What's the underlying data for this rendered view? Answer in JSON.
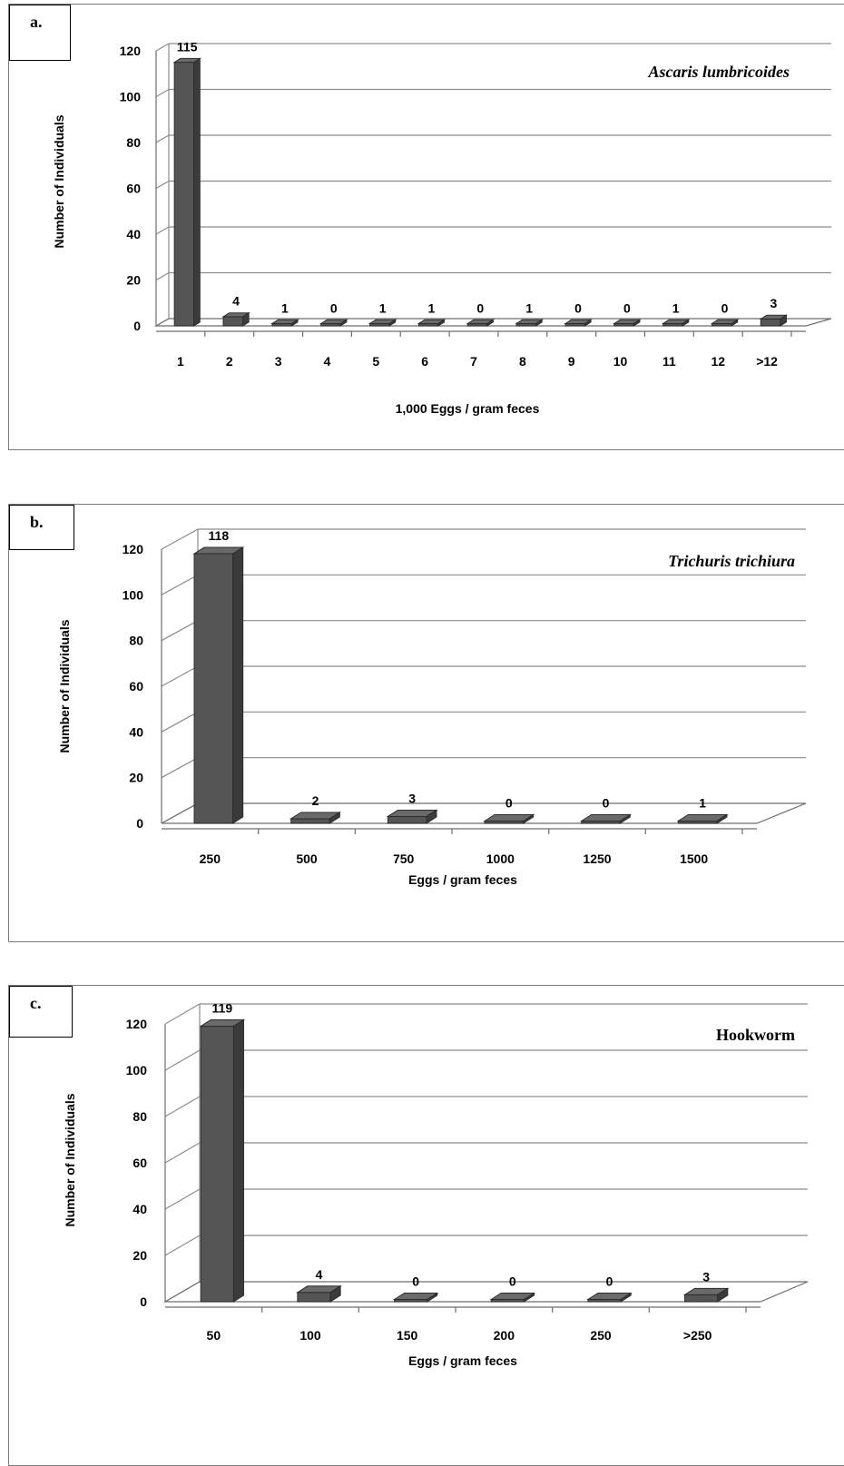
{
  "chart_data": [
    {
      "type": "bar",
      "panel_label": "a.",
      "annotation": "Ascaris lumbricoides",
      "annotation_italic": true,
      "xlabel": "1,000 Eggs / gram feces",
      "ylabel": "Number of Individuals",
      "categories": [
        "1",
        "2",
        "3",
        "4",
        "5",
        "6",
        "7",
        "8",
        "9",
        "10",
        "11",
        "12",
        ">12"
      ],
      "values": [
        115,
        4,
        1,
        0,
        1,
        1,
        0,
        1,
        0,
        0,
        1,
        0,
        3
      ],
      "ylim": [
        0,
        120
      ],
      "yticks": [
        0,
        20,
        40,
        60,
        80,
        100,
        120
      ],
      "grid": true,
      "bar_color": "#555555"
    },
    {
      "type": "bar",
      "panel_label": "b.",
      "annotation": "Trichuris trichiura",
      "annotation_italic": true,
      "xlabel": "Eggs / gram feces",
      "ylabel": "Number of Individuals",
      "categories": [
        "250",
        "500",
        "750",
        "1000",
        "1250",
        "1500"
      ],
      "values": [
        118,
        2,
        3,
        0,
        0,
        1
      ],
      "ylim": [
        0,
        120
      ],
      "yticks": [
        0,
        20,
        40,
        60,
        80,
        100,
        120
      ],
      "grid": true,
      "bar_color": "#555555"
    },
    {
      "type": "bar",
      "panel_label": "c.",
      "annotation": "Hookworm",
      "annotation_italic": false,
      "xlabel": "Eggs / gram feces",
      "ylabel": "Number of Individuals",
      "categories": [
        "50",
        "100",
        "150",
        "200",
        "250",
        ">250"
      ],
      "values": [
        119,
        4,
        0,
        0,
        0,
        3
      ],
      "ylim": [
        0,
        120
      ],
      "yticks": [
        0,
        20,
        40,
        60,
        80,
        100,
        120
      ],
      "grid": true,
      "bar_color": "#555555"
    }
  ]
}
